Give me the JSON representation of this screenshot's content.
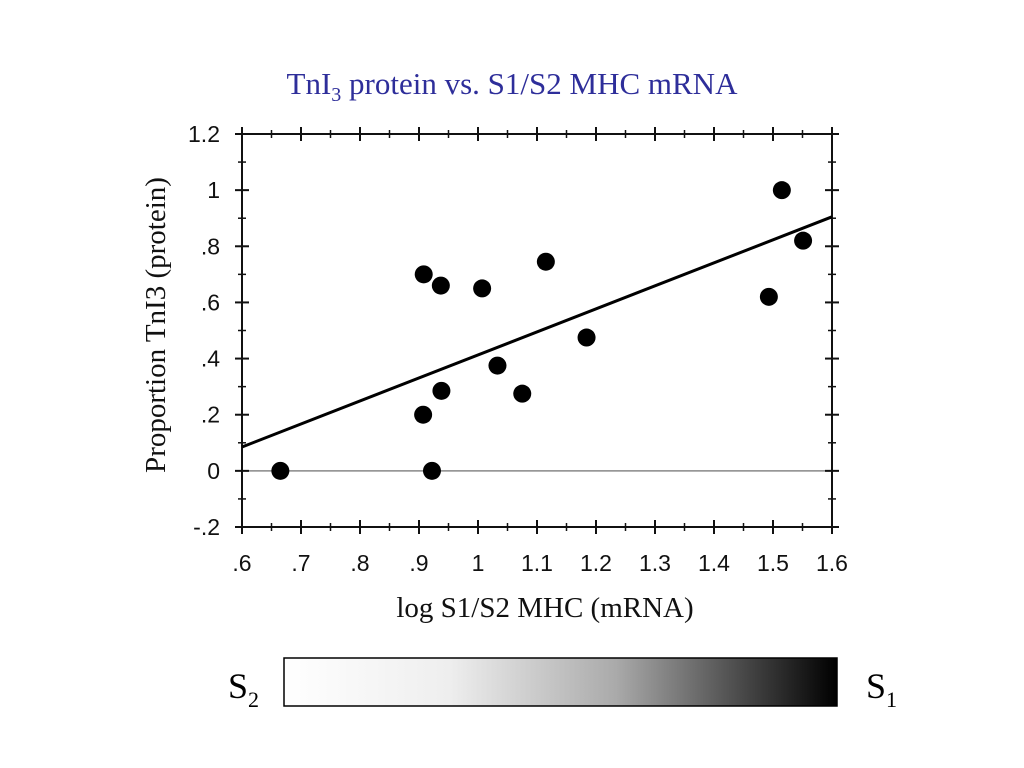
{
  "title": {
    "main": "TnI",
    "subscript": "3",
    "rest": " protein vs. S1/S2 MHC mRNA",
    "color": "#2e2e9a"
  },
  "chart_data": {
    "type": "scatter",
    "xlabel": "log S1/S2 MHC (mRNA)",
    "ylabel": "Proportion TnI3 (protein)",
    "xlim": [
      0.6,
      1.6
    ],
    "ylim": [
      -0.2,
      1.2
    ],
    "xticks": [
      0.6,
      0.7,
      0.8,
      0.9,
      1.0,
      1.1,
      1.2,
      1.3,
      1.4,
      1.5,
      1.6
    ],
    "xtick_labels": [
      ".6",
      ".7",
      ".8",
      ".9",
      "1",
      "1.1",
      "1.2",
      "1.3",
      "1.4",
      "1.5",
      "1.6"
    ],
    "yticks": [
      -0.2,
      0,
      0.2,
      0.4,
      0.6,
      0.8,
      1.0,
      1.2
    ],
    "ytick_labels": [
      "-.2",
      "0",
      ".2",
      ".4",
      ".6",
      ".8",
      "1",
      "1.2"
    ],
    "points": [
      {
        "x": 0.665,
        "y": 0.0
      },
      {
        "x": 0.908,
        "y": 0.7
      },
      {
        "x": 0.937,
        "y": 0.66
      },
      {
        "x": 1.007,
        "y": 0.65
      },
      {
        "x": 1.115,
        "y": 0.745
      },
      {
        "x": 0.907,
        "y": 0.2
      },
      {
        "x": 0.938,
        "y": 0.285
      },
      {
        "x": 0.922,
        "y": 0.0
      },
      {
        "x": 1.033,
        "y": 0.375
      },
      {
        "x": 1.075,
        "y": 0.275
      },
      {
        "x": 1.184,
        "y": 0.475
      },
      {
        "x": 1.493,
        "y": 0.62
      },
      {
        "x": 1.515,
        "y": 1.0
      },
      {
        "x": 1.551,
        "y": 0.82
      }
    ],
    "fit_line": {
      "x": [
        0.6,
        1.6
      ],
      "y": [
        0.085,
        0.905
      ]
    },
    "reference_line_y": 0,
    "grid": false
  },
  "scale_bar": {
    "left_label": "S",
    "left_sub": "2",
    "right_label": "S",
    "right_sub": "1",
    "gradient_from": "#ffffff",
    "gradient_to": "#000000"
  }
}
